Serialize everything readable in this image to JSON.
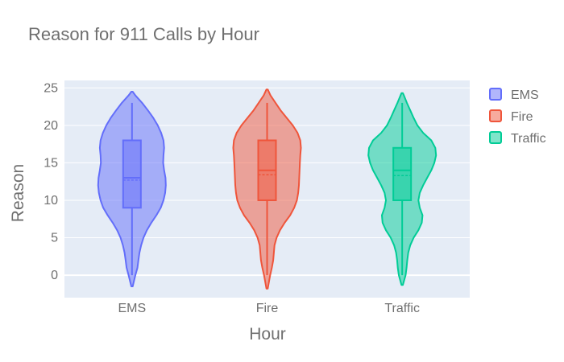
{
  "chart_data": {
    "type": "violin",
    "title": "Reason for 911 Calls by Hour",
    "xlabel": "Hour",
    "ylabel": "Reason",
    "categories": [
      "EMS",
      "Fire",
      "Traffic"
    ],
    "ylim": [
      -3,
      26
    ],
    "yticks": [
      0,
      5,
      10,
      15,
      20,
      25
    ],
    "grid": true,
    "legend": "top-right",
    "series": [
      {
        "name": "EMS",
        "color": "#636efa",
        "kde_range": [
          -1.5,
          24.5
        ],
        "box": {
          "min": 0,
          "q1": 9,
          "median": 13,
          "mean": 12.7,
          "q3": 18,
          "max": 23
        },
        "density": [
          [
            -1.5,
            0.02
          ],
          [
            0,
            0.1
          ],
          [
            1,
            0.16
          ],
          [
            2,
            0.19
          ],
          [
            3,
            0.22
          ],
          [
            4,
            0.27
          ],
          [
            5,
            0.34
          ],
          [
            6,
            0.44
          ],
          [
            7,
            0.57
          ],
          [
            8,
            0.72
          ],
          [
            9,
            0.85
          ],
          [
            10,
            0.93
          ],
          [
            11,
            0.98
          ],
          [
            12,
            1.0
          ],
          [
            13,
            0.99
          ],
          [
            14,
            0.95
          ],
          [
            15,
            0.92
          ],
          [
            16,
            0.93
          ],
          [
            17,
            0.95
          ],
          [
            18,
            0.93
          ],
          [
            19,
            0.86
          ],
          [
            20,
            0.76
          ],
          [
            21,
            0.63
          ],
          [
            22,
            0.47
          ],
          [
            23,
            0.3
          ],
          [
            24,
            0.1
          ],
          [
            24.5,
            0.02
          ]
        ]
      },
      {
        "name": "Fire",
        "color": "#ef553b",
        "kde_range": [
          -1.8,
          24.8
        ],
        "box": {
          "min": 0,
          "q1": 10,
          "median": 14,
          "mean": 13.4,
          "q3": 18,
          "max": 23
        },
        "density": [
          [
            -1.8,
            0.02
          ],
          [
            0,
            0.09
          ],
          [
            1,
            0.14
          ],
          [
            2,
            0.18
          ],
          [
            3,
            0.2
          ],
          [
            4,
            0.22
          ],
          [
            5,
            0.28
          ],
          [
            6,
            0.38
          ],
          [
            7,
            0.52
          ],
          [
            8,
            0.68
          ],
          [
            9,
            0.8
          ],
          [
            10,
            0.88
          ],
          [
            11,
            0.92
          ],
          [
            12,
            0.94
          ],
          [
            13,
            0.95
          ],
          [
            14,
            0.96
          ],
          [
            15,
            0.97
          ],
          [
            16,
            0.98
          ],
          [
            17,
            1.0
          ],
          [
            18,
            0.98
          ],
          [
            19,
            0.9
          ],
          [
            20,
            0.76
          ],
          [
            21,
            0.58
          ],
          [
            22,
            0.4
          ],
          [
            23,
            0.25
          ],
          [
            24,
            0.1
          ],
          [
            24.8,
            0.02
          ]
        ]
      },
      {
        "name": "Traffic",
        "color": "#00cc96",
        "kde_range": [
          -1.3,
          24.3
        ],
        "box": {
          "min": 0,
          "q1": 10,
          "median": 14,
          "mean": 13.3,
          "q3": 17,
          "max": 23
        },
        "density": [
          [
            -1.3,
            0.02
          ],
          [
            0,
            0.1
          ],
          [
            1,
            0.13
          ],
          [
            2,
            0.15
          ],
          [
            3,
            0.18
          ],
          [
            4,
            0.24
          ],
          [
            5,
            0.34
          ],
          [
            6,
            0.48
          ],
          [
            7,
            0.58
          ],
          [
            8,
            0.6
          ],
          [
            9,
            0.52
          ],
          [
            10,
            0.48
          ],
          [
            11,
            0.52
          ],
          [
            12,
            0.62
          ],
          [
            13,
            0.74
          ],
          [
            14,
            0.86
          ],
          [
            15,
            0.95
          ],
          [
            16,
            1.0
          ],
          [
            17,
            0.98
          ],
          [
            18,
            0.86
          ],
          [
            19,
            0.62
          ],
          [
            20,
            0.45
          ],
          [
            21,
            0.34
          ],
          [
            22,
            0.24
          ],
          [
            23,
            0.14
          ],
          [
            24,
            0.05
          ],
          [
            24.3,
            0.02
          ]
        ]
      }
    ]
  }
}
